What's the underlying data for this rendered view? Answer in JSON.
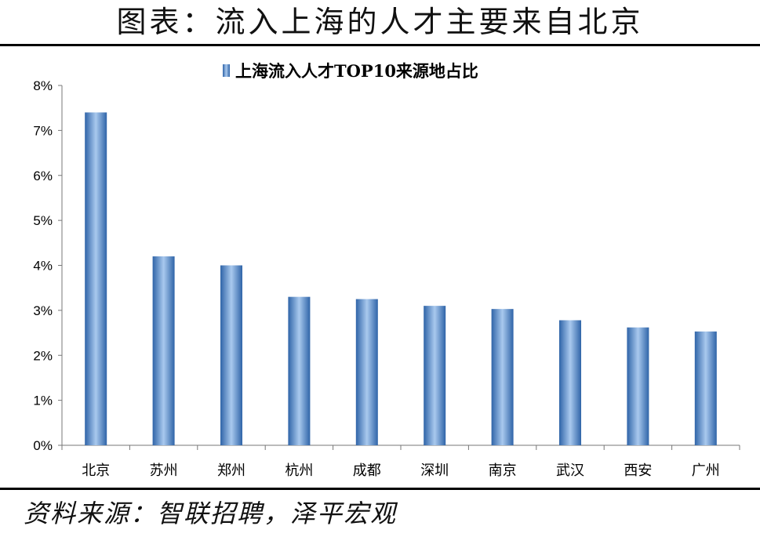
{
  "header": {
    "title": "图表：流入上海的人才主要来自北京"
  },
  "footer": {
    "source": "资料来源：智联招聘，泽平宏观"
  },
  "colors": {
    "bar_light": "#a9c9ee",
    "bar_dark": "#2f64a8",
    "axis": "#777777"
  },
  "chart_data": {
    "type": "bar",
    "legend": "上海流入人才TOP10来源地占比",
    "legend_position": "top-center",
    "categories": [
      "北京",
      "苏州",
      "郑州",
      "杭州",
      "成都",
      "深圳",
      "南京",
      "武汉",
      "西安",
      "广州"
    ],
    "values": [
      7.4,
      4.2,
      4.0,
      3.3,
      3.25,
      3.1,
      3.03,
      2.78,
      2.62,
      2.53
    ],
    "unit": "%",
    "ylim": [
      0,
      8
    ],
    "yticks": [
      "0%",
      "1%",
      "2%",
      "3%",
      "4%",
      "5%",
      "6%",
      "7%",
      "8%"
    ],
    "grid": false
  }
}
